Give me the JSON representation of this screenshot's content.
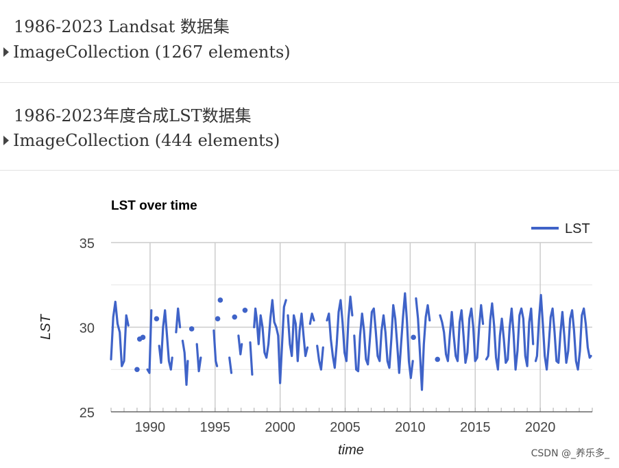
{
  "outputs": [
    {
      "title": "1986-2023 Landsat 数据集",
      "collection": "ImageCollection (1267 elements)"
    },
    {
      "title": "1986-2023年度合成LST数据集",
      "collection": "ImageCollection (444 elements)"
    }
  ],
  "chart_data": {
    "type": "line",
    "title": "LST over time",
    "xlabel": "time",
    "ylabel": "LST",
    "xlim": [
      1987.0,
      2024.0
    ],
    "ylim": [
      25,
      35
    ],
    "yticks": [
      25,
      30,
      35
    ],
    "xticks": [
      1990,
      1995,
      2000,
      2005,
      2010,
      2015,
      2020
    ],
    "ytick_labels": [
      "25",
      "30",
      "35"
    ],
    "xtick_labels": [
      "1990",
      "1995",
      "2000",
      "2005",
      "2010",
      "2015",
      "2020"
    ],
    "grid": true,
    "legend": "top-right",
    "series": [
      {
        "name": "LST",
        "color": "#3f63c8",
        "points": [
          [
            1987.0,
            28.1
          ],
          [
            1987.17,
            30.6
          ],
          [
            1987.33,
            31.5
          ],
          [
            1987.5,
            30.2
          ],
          [
            1987.67,
            29.7
          ],
          [
            1987.83,
            27.7
          ],
          [
            1988.0,
            28.0
          ],
          [
            1988.17,
            30.7
          ],
          [
            1988.33,
            30.1
          ],
          [
            1988.5,
            null
          ],
          [
            1989.0,
            27.5
          ],
          [
            1989.1,
            null
          ],
          [
            1989.2,
            29.3
          ],
          [
            1989.3,
            null
          ],
          [
            1989.45,
            29.4
          ],
          [
            1989.55,
            null
          ],
          [
            1989.8,
            27.5
          ],
          [
            1989.95,
            27.3
          ],
          [
            1990.1,
            31.0
          ],
          [
            1990.25,
            null
          ],
          [
            1990.5,
            30.5
          ],
          [
            1990.6,
            null
          ],
          [
            1990.7,
            28.9
          ],
          [
            1990.85,
            27.9
          ],
          [
            1991.0,
            30.0
          ],
          [
            1991.15,
            31.0
          ],
          [
            1991.3,
            29.5
          ],
          [
            1991.45,
            28.0
          ],
          [
            1991.6,
            27.5
          ],
          [
            1991.7,
            28.2
          ],
          [
            1991.8,
            null
          ],
          [
            1992.0,
            29.7
          ],
          [
            1992.15,
            31.1
          ],
          [
            1992.3,
            30.0
          ],
          [
            1992.4,
            null
          ],
          [
            1992.5,
            29.2
          ],
          [
            1992.65,
            28.5
          ],
          [
            1992.8,
            26.6
          ],
          [
            1992.9,
            28.0
          ],
          [
            1993.0,
            null
          ],
          [
            1993.2,
            29.9
          ],
          [
            1993.3,
            null
          ],
          [
            1993.6,
            29.0
          ],
          [
            1993.75,
            27.4
          ],
          [
            1993.9,
            28.2
          ],
          [
            1994.1,
            null
          ],
          [
            1994.9,
            29.8
          ],
          [
            1995.05,
            28.0
          ],
          [
            1995.15,
            27.7
          ],
          [
            1995.25,
            null
          ],
          [
            1995.2,
            30.5
          ],
          [
            1995.3,
            null
          ],
          [
            1995.4,
            31.6
          ],
          [
            1995.5,
            null
          ],
          [
            1996.1,
            28.2
          ],
          [
            1996.25,
            27.3
          ],
          [
            1996.35,
            null
          ],
          [
            1996.5,
            30.6
          ],
          [
            1996.6,
            null
          ],
          [
            1996.8,
            29.5
          ],
          [
            1996.95,
            28.4
          ],
          [
            1997.05,
            29.0
          ],
          [
            1997.2,
            null
          ],
          [
            1997.3,
            31.0
          ],
          [
            1997.4,
            null
          ],
          [
            1997.7,
            29.1
          ],
          [
            1997.85,
            27.2
          ],
          [
            1998.0,
            null
          ],
          [
            1998.0,
            30.0
          ],
          [
            1998.1,
            31.1
          ],
          [
            1998.2,
            30.5
          ],
          [
            1998.35,
            29.0
          ],
          [
            1998.5,
            30.7
          ],
          [
            1998.65,
            30.0
          ],
          [
            1998.8,
            28.5
          ],
          [
            1998.95,
            28.2
          ],
          [
            1999.1,
            29.0
          ],
          [
            1999.25,
            30.5
          ],
          [
            1999.4,
            31.6
          ],
          [
            1999.55,
            30.3
          ],
          [
            1999.7,
            30.0
          ],
          [
            1999.85,
            29.5
          ],
          [
            2000.0,
            26.7
          ],
          [
            2000.15,
            29.0
          ],
          [
            2000.3,
            31.2
          ],
          [
            2000.45,
            31.6
          ],
          [
            2000.6,
            null
          ],
          [
            2000.6,
            30.7
          ],
          [
            2000.75,
            29.0
          ],
          [
            2000.9,
            28.3
          ],
          [
            2001.05,
            30.7
          ],
          [
            2001.2,
            30.2
          ],
          [
            2001.35,
            28.0
          ],
          [
            2001.5,
            29.8
          ],
          [
            2001.65,
            30.8
          ],
          [
            2001.8,
            29.5
          ],
          [
            2001.95,
            28.3
          ],
          [
            2002.1,
            28.8
          ],
          [
            2002.25,
            null
          ],
          [
            2002.3,
            30.2
          ],
          [
            2002.45,
            30.8
          ],
          [
            2002.6,
            30.4
          ],
          [
            2002.7,
            null
          ],
          [
            2002.85,
            28.9
          ],
          [
            2003.0,
            28.0
          ],
          [
            2003.15,
            27.5
          ],
          [
            2003.3,
            28.8
          ],
          [
            2003.45,
            null
          ],
          [
            2003.6,
            30.4
          ],
          [
            2003.75,
            30.8
          ],
          [
            2003.9,
            29.3
          ],
          [
            2004.05,
            28.3
          ],
          [
            2004.2,
            27.6
          ],
          [
            2004.35,
            29.0
          ],
          [
            2004.5,
            30.9
          ],
          [
            2004.65,
            31.6
          ],
          [
            2004.8,
            30.3
          ],
          [
            2004.95,
            28.5
          ],
          [
            2005.1,
            28.0
          ],
          [
            2005.25,
            30.5
          ],
          [
            2005.4,
            31.8
          ],
          [
            2005.55,
            30.7
          ],
          [
            2005.7,
            null
          ],
          [
            2005.7,
            29.5
          ],
          [
            2005.85,
            27.5
          ],
          [
            2006.0,
            27.4
          ],
          [
            2006.15,
            29.5
          ],
          [
            2006.3,
            30.8
          ],
          [
            2006.45,
            29.8
          ],
          [
            2006.6,
            28.1
          ],
          [
            2006.75,
            27.8
          ],
          [
            2006.9,
            29.3
          ],
          [
            2007.05,
            30.9
          ],
          [
            2007.2,
            31.1
          ],
          [
            2007.35,
            29.8
          ],
          [
            2007.5,
            28.3
          ],
          [
            2007.65,
            28.0
          ],
          [
            2007.8,
            29.8
          ],
          [
            2007.95,
            30.7
          ],
          [
            2008.1,
            29.7
          ],
          [
            2008.25,
            28.0
          ],
          [
            2008.4,
            27.6
          ],
          [
            2008.55,
            29.3
          ],
          [
            2008.7,
            31.3
          ],
          [
            2008.85,
            30.5
          ],
          [
            2009.0,
            29.0
          ],
          [
            2009.15,
            27.3
          ],
          [
            2009.3,
            29.0
          ],
          [
            2009.45,
            30.6
          ],
          [
            2009.6,
            32.0
          ],
          [
            2009.75,
            30.4
          ],
          [
            2009.9,
            28.0
          ],
          [
            2010.05,
            27.0
          ],
          [
            2010.2,
            28.0
          ],
          [
            2010.3,
            null
          ],
          [
            2010.25,
            29.4
          ],
          [
            2010.35,
            null
          ],
          [
            2010.45,
            31.7
          ],
          [
            2010.6,
            30.5
          ],
          [
            2010.75,
            28.5
          ],
          [
            2010.9,
            26.3
          ],
          [
            2011.05,
            29.0
          ],
          [
            2011.2,
            30.6
          ],
          [
            2011.35,
            31.3
          ],
          [
            2011.5,
            30.4
          ],
          [
            2011.6,
            null
          ],
          [
            2012.1,
            28.1
          ],
          [
            2012.2,
            null
          ],
          [
            2012.3,
            30.7
          ],
          [
            2012.45,
            30.3
          ],
          [
            2012.6,
            29.7
          ],
          [
            2012.75,
            28.4
          ],
          [
            2012.9,
            28.0
          ],
          [
            2013.05,
            29.5
          ],
          [
            2013.2,
            30.9
          ],
          [
            2013.35,
            29.5
          ],
          [
            2013.5,
            28.3
          ],
          [
            2013.65,
            28.0
          ],
          [
            2013.8,
            30.3
          ],
          [
            2013.95,
            31.0
          ],
          [
            2014.1,
            29.5
          ],
          [
            2014.25,
            27.9
          ],
          [
            2014.4,
            28.5
          ],
          [
            2014.55,
            30.5
          ],
          [
            2014.7,
            31.1
          ],
          [
            2014.85,
            30.0
          ],
          [
            2015.0,
            28.0
          ],
          [
            2015.15,
            28.2
          ],
          [
            2015.3,
            30.0
          ],
          [
            2015.45,
            31.3
          ],
          [
            2015.6,
            30.2
          ],
          [
            2015.75,
            null
          ],
          [
            2015.85,
            28.1
          ],
          [
            2016.0,
            28.3
          ],
          [
            2016.15,
            30.4
          ],
          [
            2016.3,
            31.4
          ],
          [
            2016.45,
            30.1
          ],
          [
            2016.6,
            28.2
          ],
          [
            2016.75,
            27.5
          ],
          [
            2016.9,
            29.5
          ],
          [
            2017.05,
            30.5
          ],
          [
            2017.2,
            29.3
          ],
          [
            2017.35,
            27.9
          ],
          [
            2017.5,
            28.1
          ],
          [
            2017.65,
            30.0
          ],
          [
            2017.8,
            31.1
          ],
          [
            2017.95,
            29.6
          ],
          [
            2018.1,
            27.5
          ],
          [
            2018.25,
            28.6
          ],
          [
            2018.4,
            30.7
          ],
          [
            2018.55,
            31.1
          ],
          [
            2018.7,
            30.5
          ],
          [
            2018.85,
            28.3
          ],
          [
            2019.0,
            27.7
          ],
          [
            2019.15,
            30.3
          ],
          [
            2019.3,
            31.1
          ],
          [
            2019.45,
            29.0
          ],
          [
            2019.6,
            null
          ],
          [
            2019.65,
            28.0
          ],
          [
            2019.75,
            28.3
          ],
          [
            2019.9,
            30.4
          ],
          [
            2020.05,
            31.9
          ],
          [
            2020.2,
            30.2
          ],
          [
            2020.35,
            28.3
          ],
          [
            2020.5,
            27.5
          ],
          [
            2020.65,
            28.9
          ],
          [
            2020.8,
            30.6
          ],
          [
            2020.95,
            31.1
          ],
          [
            2021.1,
            29.7
          ],
          [
            2021.25,
            28.0
          ],
          [
            2021.4,
            27.9
          ],
          [
            2021.55,
            29.6
          ],
          [
            2021.7,
            30.9
          ],
          [
            2021.85,
            29.5
          ],
          [
            2022.0,
            27.9
          ],
          [
            2022.15,
            28.6
          ],
          [
            2022.3,
            30.5
          ],
          [
            2022.45,
            31.0
          ],
          [
            2022.6,
            29.8
          ],
          [
            2022.75,
            28.0
          ],
          [
            2022.9,
            27.5
          ],
          [
            2023.05,
            28.6
          ],
          [
            2023.2,
            30.7
          ],
          [
            2023.35,
            31.1
          ],
          [
            2023.5,
            30.2
          ],
          [
            2023.65,
            28.8
          ],
          [
            2023.8,
            28.2
          ],
          [
            2023.9,
            28.3
          ]
        ]
      }
    ]
  },
  "watermark": "CSDN @_养乐多_"
}
